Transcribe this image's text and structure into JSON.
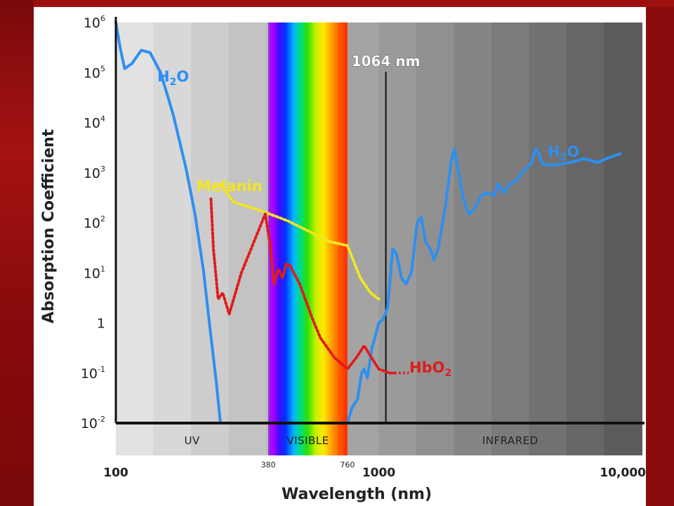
{
  "chart_data": {
    "type": "line",
    "title": "",
    "xlabel": "Wavelength (nm)",
    "ylabel": "Absorption Coefficient",
    "x_scale": "log",
    "y_scale": "log",
    "xlim": [
      100,
      10000
    ],
    "ylim": [
      0.01,
      1000000
    ],
    "x_ticks": [
      {
        "value": 100,
        "label": "100",
        "size": "large"
      },
      {
        "value": 380,
        "label": "380",
        "size": "small"
      },
      {
        "value": 760,
        "label": "760",
        "size": "small"
      },
      {
        "value": 1000,
        "label": "1000",
        "size": "large"
      },
      {
        "value": 10000,
        "label": "10,000",
        "size": "large"
      }
    ],
    "y_ticks": [
      {
        "value": 0.01,
        "base": "10",
        "sup": "-2"
      },
      {
        "value": 0.1,
        "base": "10",
        "sup": "-1"
      },
      {
        "value": 1,
        "base": "1",
        "sup": ""
      },
      {
        "value": 10,
        "base": "10",
        "sup": "1"
      },
      {
        "value": 100,
        "base": "10",
        "sup": "2"
      },
      {
        "value": 1000,
        "base": "10",
        "sup": "3"
      },
      {
        "value": 10000,
        "base": "10",
        "sup": "4"
      },
      {
        "value": 100000,
        "base": "10",
        "sup": "5"
      },
      {
        "value": 1000000,
        "base": "10",
        "sup": "6"
      }
    ],
    "bands": [
      {
        "label": "UV",
        "from": 100,
        "to": 380
      },
      {
        "label": "VISIBLE",
        "from": 380,
        "to": 760
      },
      {
        "label": "INFRARED",
        "from": 1000,
        "to": 10000
      }
    ],
    "marker": {
      "x": 1064,
      "label": "1064 nm"
    },
    "series": [
      {
        "name": "H2O",
        "label_base": "H",
        "label_sub": "2",
        "label_rest": "O",
        "color": "#2e8ff0",
        "style": "solid",
        "points": [
          [
            100,
            1000000
          ],
          [
            104,
            300000
          ],
          [
            108,
            120000
          ],
          [
            115,
            150000
          ],
          [
            125,
            280000
          ],
          [
            135,
            250000
          ],
          [
            148,
            100000
          ],
          [
            165,
            15000
          ],
          [
            185,
            1200
          ],
          [
            200,
            150
          ],
          [
            215,
            12
          ],
          [
            228,
            0.8
          ],
          [
            240,
            0.08
          ],
          [
            250,
            0.01
          ]
        ]
      },
      {
        "name": "H2O",
        "label_base": "H",
        "label_sub": "2",
        "label_rest": "O",
        "color": "#2e8ff0",
        "style": "solid",
        "points": [
          [
            760,
            0.01
          ],
          [
            790,
            0.02
          ],
          [
            830,
            0.03
          ],
          [
            860,
            0.1
          ],
          [
            880,
            0.12
          ],
          [
            905,
            0.08
          ],
          [
            940,
            0.3
          ],
          [
            975,
            0.6
          ],
          [
            1000,
            1
          ],
          [
            1040,
            1.2
          ],
          [
            1080,
            2
          ],
          [
            1130,
            30
          ],
          [
            1165,
            25
          ],
          [
            1220,
            8
          ],
          [
            1270,
            6
          ],
          [
            1330,
            10
          ],
          [
            1400,
            100
          ],
          [
            1450,
            130
          ],
          [
            1510,
            40
          ],
          [
            1570,
            30
          ],
          [
            1620,
            18
          ],
          [
            1680,
            30
          ],
          [
            1790,
            200
          ],
          [
            1890,
            1800
          ],
          [
            1940,
            3000
          ],
          [
            2000,
            1200
          ],
          [
            2100,
            300
          ],
          [
            2200,
            150
          ],
          [
            2300,
            180
          ],
          [
            2450,
            350
          ],
          [
            2600,
            400
          ],
          [
            2750,
            350
          ],
          [
            2850,
            600
          ],
          [
            2900,
            500
          ],
          [
            3000,
            400
          ],
          [
            3150,
            600
          ],
          [
            3350,
            700
          ],
          [
            3550,
            1100
          ],
          [
            3800,
            1500
          ],
          [
            3950,
            3000
          ],
          [
            4050,
            2500
          ],
          [
            4200,
            1500
          ],
          [
            4500,
            1400
          ],
          [
            5000,
            1500
          ],
          [
            5600,
            1700
          ],
          [
            6000,
            1900
          ],
          [
            6300,
            1800
          ],
          [
            6800,
            1600
          ],
          [
            7500,
            2000
          ],
          [
            8300,
            2400
          ]
        ]
      },
      {
        "name": "Melanin",
        "label": "Melanin",
        "color": "#f2e620",
        "style": "dotted",
        "points": [
          [
            250,
            600
          ],
          [
            280,
            260
          ],
          [
            350,
            180
          ],
          [
            450,
            110
          ],
          [
            550,
            65
          ],
          [
            650,
            42
          ],
          [
            760,
            35
          ],
          [
            850,
            8
          ],
          [
            930,
            4
          ],
          [
            1000,
            3
          ]
        ]
      },
      {
        "name": "HbO2",
        "label_base": "HbO",
        "label_sub": "2",
        "label_rest": "",
        "color": "#e01b1b",
        "style": "dotted",
        "points": [
          [
            230,
            300
          ],
          [
            235,
            30
          ],
          [
            245,
            3
          ],
          [
            255,
            4
          ],
          [
            270,
            1.5
          ],
          [
            300,
            10
          ],
          [
            340,
            50
          ],
          [
            370,
            150
          ],
          [
            385,
            40
          ],
          [
            400,
            6
          ],
          [
            415,
            12
          ],
          [
            430,
            8
          ],
          [
            445,
            15
          ],
          [
            460,
            14
          ],
          [
            475,
            10
          ],
          [
            500,
            6
          ],
          [
            525,
            3
          ],
          [
            560,
            1.2
          ],
          [
            600,
            0.5
          ],
          [
            680,
            0.2
          ],
          [
            760,
            0.12
          ],
          [
            820,
            0.2
          ],
          [
            880,
            0.35
          ],
          [
            940,
            0.2
          ],
          [
            1000,
            0.12
          ],
          [
            1100,
            0.1
          ],
          [
            1150,
            0.1
          ]
        ],
        "legend_tail": [
          [
            1150,
            0.1
          ],
          [
            1300,
            0.1
          ]
        ]
      }
    ]
  }
}
